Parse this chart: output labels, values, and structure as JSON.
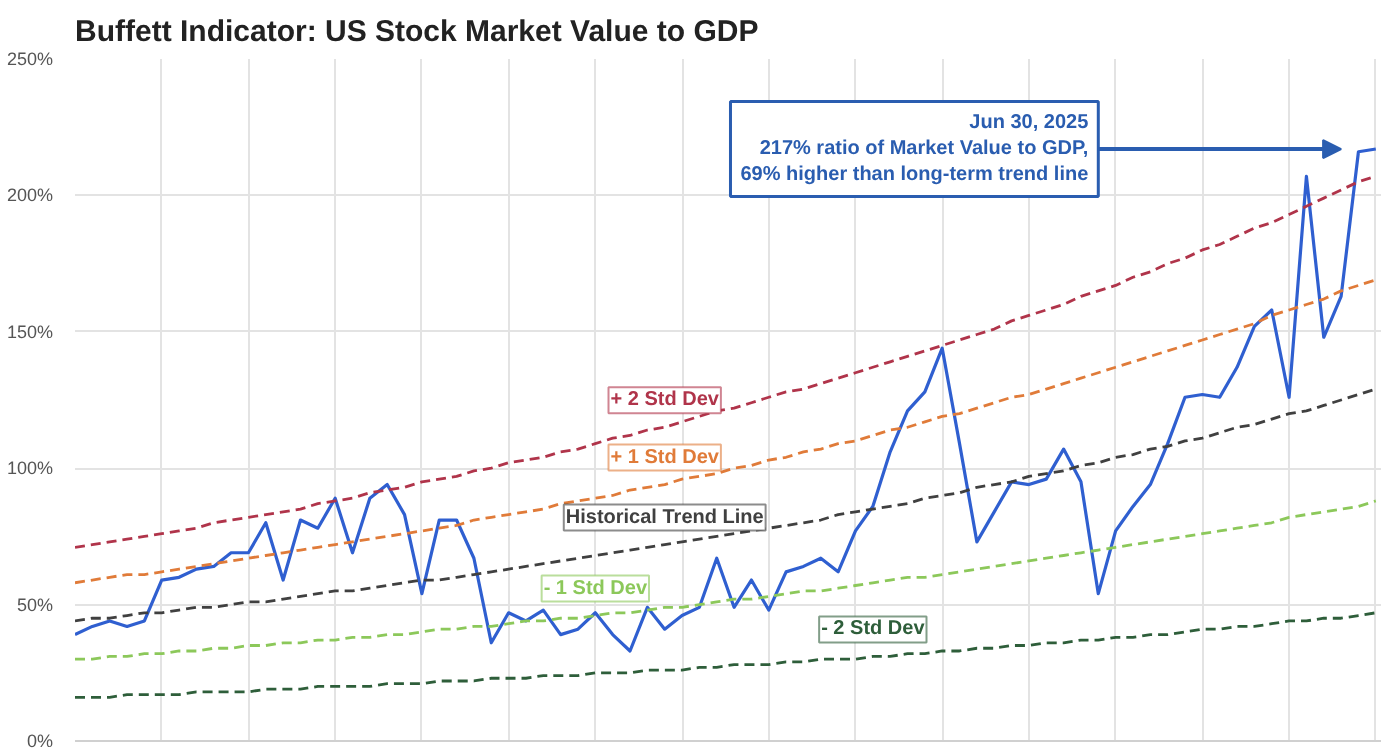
{
  "chart_data": {
    "type": "line",
    "title": "Buffett Indicator: US Stock Market Value to GDP",
    "categories": [
      null,
      null,
      null,
      null,
      null,
      null,
      null,
      null,
      null,
      null,
      null,
      null,
      null,
      null,
      null,
      null,
      null,
      null,
      null,
      null,
      null,
      null,
      null,
      null,
      null,
      null,
      null,
      null,
      null,
      null,
      null,
      null,
      null,
      null,
      null,
      null,
      null,
      null,
      null,
      null,
      null,
      null,
      null,
      null,
      null,
      null,
      null,
      null,
      null,
      null,
      null,
      null,
      null,
      null,
      null,
      null,
      null,
      null,
      null,
      null,
      null,
      null,
      null,
      null,
      null,
      null,
      null,
      null,
      null,
      null,
      null,
      null,
      null,
      null,
      null,
      null
    ],
    "ylim": [
      0,
      250
    ],
    "yticks": [
      {
        "value": 0,
        "label": "0%"
      },
      {
        "value": 50,
        "label": "50%"
      },
      {
        "value": 100,
        "label": "100%"
      },
      {
        "value": 150,
        "label": "150%"
      },
      {
        "value": 200,
        "label": "200%"
      },
      {
        "value": 250,
        "label": "250%"
      }
    ],
    "grid": true,
    "line_style": "solid",
    "series": [
      {
        "color": "#2f5fd0",
        "values": [
          39,
          42,
          44,
          42,
          44,
          59,
          60,
          63,
          64,
          69,
          69,
          80,
          59,
          81,
          78,
          89,
          69,
          89,
          94,
          83,
          54,
          81,
          81,
          67,
          36,
          47,
          44,
          48,
          39,
          41,
          47,
          39,
          33,
          49,
          41,
          46,
          49,
          67,
          49,
          59,
          48,
          62,
          64,
          67,
          62,
          77,
          86,
          106,
          121,
          128,
          144,
          109,
          73,
          84,
          95,
          94,
          96,
          107,
          95,
          54,
          77,
          86,
          94,
          109,
          126,
          127,
          126,
          137,
          152,
          158,
          126,
          207,
          148,
          163,
          216,
          217
        ]
      },
      {
        "name": "+ 2 Std Dev",
        "color": "#b0344a",
        "line_style": "dashed",
        "values": [
          71,
          72,
          73,
          74,
          75,
          76,
          77,
          78,
          80,
          81,
          82,
          83,
          84,
          85,
          87,
          88,
          89,
          91,
          92,
          93,
          95,
          96,
          97,
          99,
          100,
          102,
          103,
          104,
          106,
          107,
          109,
          111,
          112,
          114,
          115,
          117,
          119,
          121,
          122,
          124,
          126,
          128,
          129,
          131,
          133,
          135,
          137,
          139,
          141,
          143,
          145,
          147,
          149,
          151,
          154,
          156,
          158,
          160,
          163,
          165,
          167,
          170,
          172,
          175,
          177,
          180,
          182,
          185,
          188,
          190,
          193,
          196,
          199,
          202,
          205,
          207
        ]
      },
      {
        "name": "+ 1 Std Dev",
        "color": "#e07b39",
        "line_style": "dashed",
        "values": [
          58,
          59,
          60,
          61,
          61,
          62,
          63,
          64,
          65,
          66,
          67,
          68,
          69,
          70,
          71,
          72,
          73,
          74,
          75,
          76,
          77,
          78,
          79,
          81,
          82,
          83,
          84,
          85,
          87,
          88,
          89,
          90,
          92,
          93,
          94,
          96,
          97,
          98,
          100,
          101,
          103,
          104,
          106,
          107,
          109,
          110,
          112,
          114,
          115,
          117,
          119,
          120,
          122,
          124,
          126,
          127,
          129,
          131,
          133,
          135,
          137,
          139,
          141,
          143,
          145,
          147,
          149,
          151,
          153,
          156,
          158,
          160,
          162,
          165,
          167,
          169
        ]
      },
      {
        "name": "Historical Trend Line",
        "color": "#404040",
        "line_style": "dashed",
        "values": [
          44,
          45,
          45,
          46,
          47,
          47,
          48,
          49,
          49,
          50,
          51,
          51,
          52,
          53,
          54,
          55,
          55,
          56,
          57,
          58,
          59,
          59,
          60,
          61,
          62,
          63,
          64,
          65,
          66,
          67,
          68,
          69,
          70,
          71,
          72,
          73,
          74,
          75,
          76,
          77,
          78,
          79,
          80,
          81,
          83,
          84,
          85,
          86,
          87,
          89,
          90,
          91,
          93,
          94,
          95,
          97,
          98,
          99,
          101,
          102,
          104,
          105,
          107,
          108,
          110,
          111,
          113,
          115,
          116,
          118,
          120,
          121,
          123,
          125,
          127,
          129
        ]
      },
      {
        "name": "- 1 Std Dev",
        "color": "#8cc85a",
        "line_style": "dashed",
        "values": [
          30,
          30,
          31,
          31,
          32,
          32,
          33,
          33,
          34,
          34,
          35,
          35,
          36,
          36,
          37,
          37,
          38,
          38,
          39,
          39,
          40,
          41,
          41,
          42,
          42,
          43,
          44,
          44,
          45,
          45,
          46,
          47,
          47,
          48,
          49,
          49,
          50,
          51,
          52,
          52,
          53,
          54,
          55,
          55,
          56,
          57,
          58,
          59,
          60,
          60,
          61,
          62,
          63,
          64,
          65,
          66,
          67,
          68,
          69,
          70,
          71,
          72,
          73,
          74,
          75,
          76,
          77,
          78,
          79,
          80,
          82,
          83,
          84,
          85,
          86,
          88
        ]
      },
      {
        "name": "- 2 Std Dev",
        "color": "#2e5e3a",
        "line_style": "dashed",
        "values": [
          16,
          16,
          16,
          17,
          17,
          17,
          17,
          18,
          18,
          18,
          18,
          19,
          19,
          19,
          20,
          20,
          20,
          20,
          21,
          21,
          21,
          22,
          22,
          22,
          23,
          23,
          23,
          24,
          24,
          24,
          25,
          25,
          25,
          26,
          26,
          26,
          27,
          27,
          28,
          28,
          28,
          29,
          29,
          30,
          30,
          30,
          31,
          31,
          32,
          32,
          33,
          33,
          34,
          34,
          35,
          35,
          36,
          36,
          37,
          37,
          38,
          38,
          39,
          39,
          40,
          41,
          41,
          42,
          42,
          43,
          44,
          44,
          45,
          45,
          46,
          47
        ]
      }
    ],
    "annotations": [
      "Jun 30, 2025\n217% ratio of Market Value to GDP,\n69% higher than long-term trend line"
    ]
  }
}
